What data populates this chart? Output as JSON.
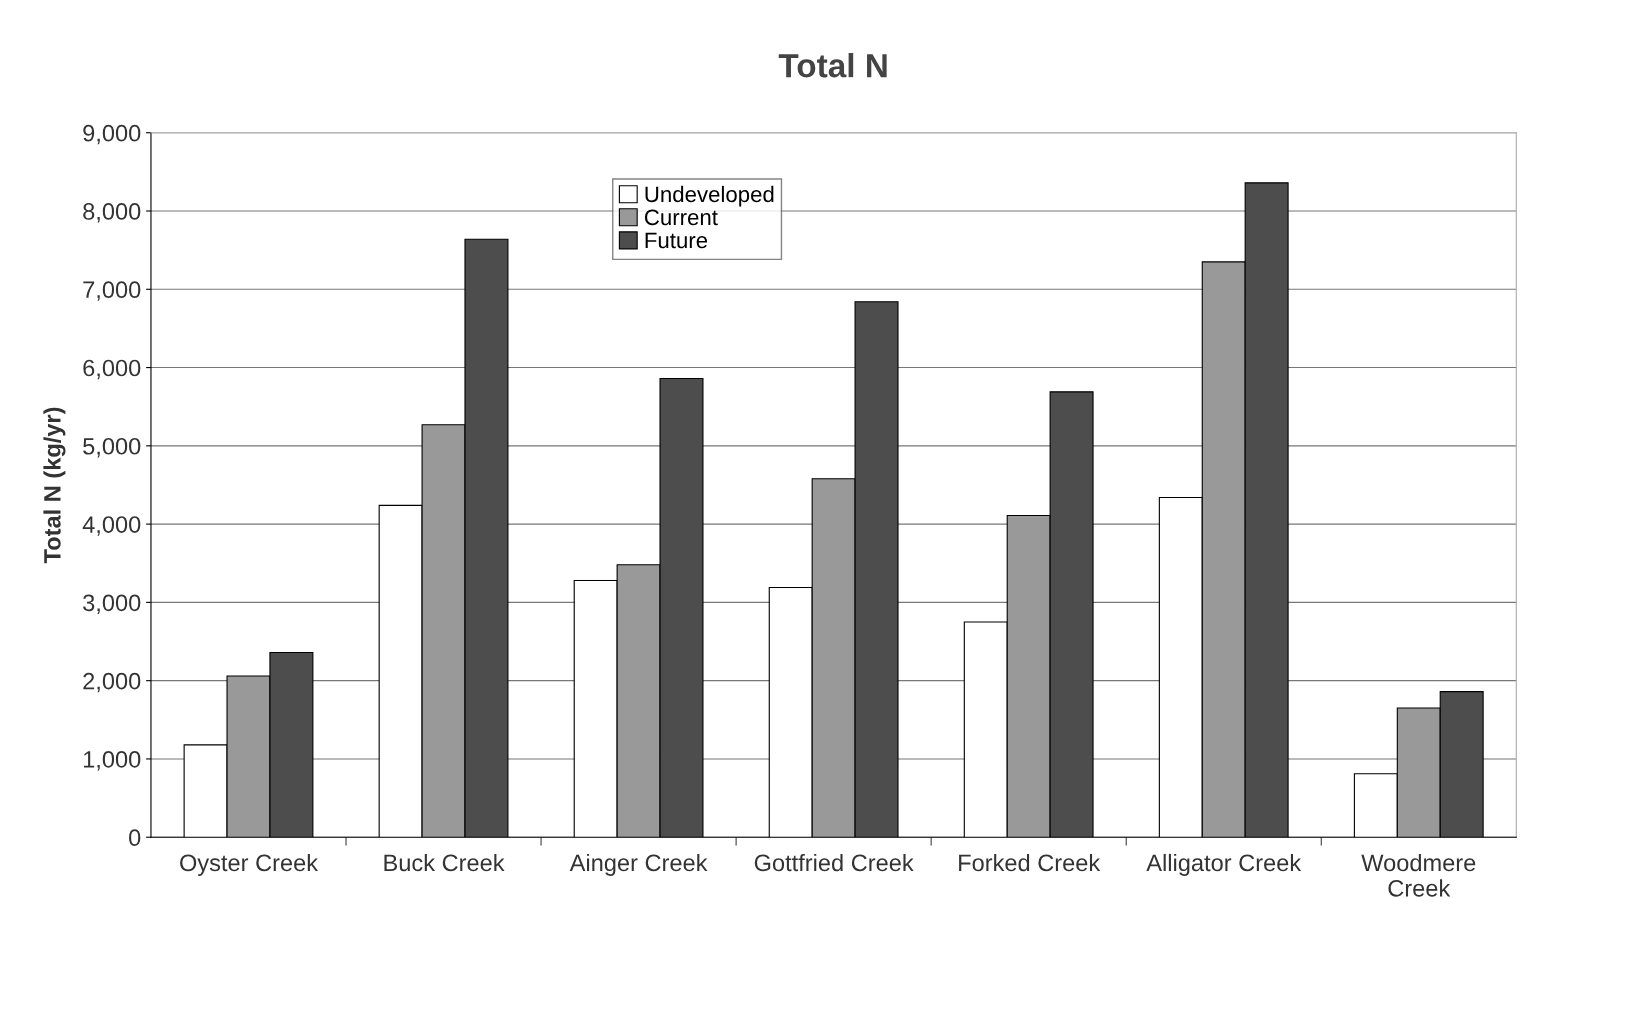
{
  "chart_data": {
    "type": "bar",
    "title": "Total N",
    "ylabel": "Total N (kg/yr)",
    "categories": [
      "Oyster Creek",
      "Buck Creek",
      "Ainger Creek",
      "Gottfried Creek",
      "Forked Creek",
      "Alligator Creek",
      "Woodmere\nCreek"
    ],
    "series": [
      {
        "name": "Undeveloped",
        "color": "#ffffff",
        "values": [
          1180,
          4240,
          3280,
          3190,
          2750,
          4340,
          810
        ]
      },
      {
        "name": "Current",
        "color": "#999999",
        "values": [
          2060,
          5270,
          3480,
          4580,
          4110,
          7350,
          1650
        ]
      },
      {
        "name": "Future",
        "color": "#4d4d4d",
        "values": [
          2360,
          7640,
          5860,
          6840,
          5690,
          8360,
          1860
        ]
      }
    ],
    "ylim": [
      0,
      9000
    ],
    "yticks": [
      {
        "value": 0,
        "label": "0"
      },
      {
        "value": 1000,
        "label": "1,000"
      },
      {
        "value": 2000,
        "label": "2,000"
      },
      {
        "value": 3000,
        "label": "3,000"
      },
      {
        "value": 4000,
        "label": "4,000"
      },
      {
        "value": 5000,
        "label": "5,000"
      },
      {
        "value": 6000,
        "label": "6,000"
      },
      {
        "value": 7000,
        "label": "7,000"
      },
      {
        "value": 8000,
        "label": "8,000"
      },
      {
        "value": 9000,
        "label": "9,000"
      }
    ],
    "grid": "y",
    "legend": "top"
  }
}
